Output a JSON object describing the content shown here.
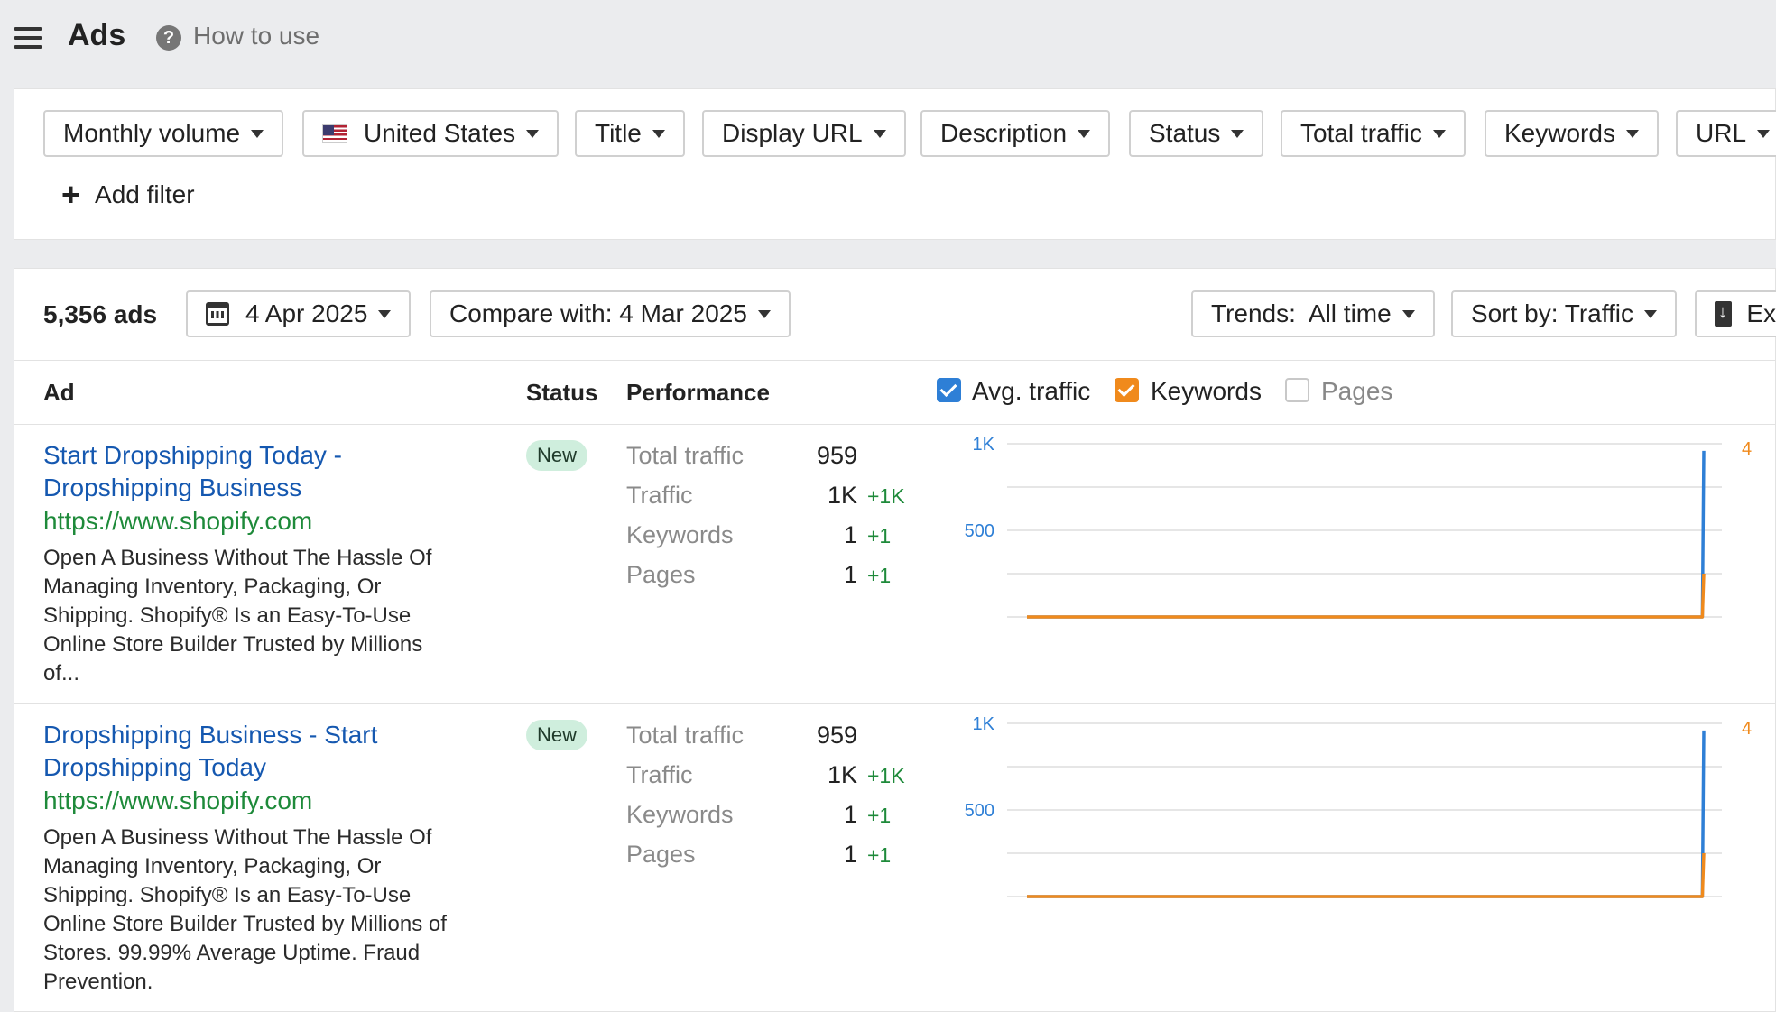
{
  "header": {
    "title": "Ads",
    "help_label": "How to use",
    "help_icon": "question-circle-icon",
    "menu_icon": "hamburger-menu-icon"
  },
  "filters": {
    "chips": [
      {
        "label": "Monthly volume"
      },
      {
        "label": "United States",
        "icon": "us-flag-icon"
      },
      {
        "label": "Title"
      },
      {
        "label": "Display URL"
      },
      {
        "label": "Description"
      },
      {
        "label": "Status"
      },
      {
        "label": "Total traffic"
      },
      {
        "label": "Keywords"
      },
      {
        "label": "URL"
      }
    ],
    "add_filter_label": "Add filter"
  },
  "results": {
    "count_label": "5,356 ads",
    "date_label": "4 Apr 2025",
    "compare_label": "Compare with: 4 Mar 2025",
    "trends_label": "Trends:  All time",
    "sort_label": "Sort by: Traffic",
    "export_label": "Ex"
  },
  "table": {
    "headers": {
      "ad": "Ad",
      "status": "Status",
      "performance": "Performance"
    },
    "toggles": [
      {
        "label": "Avg. traffic",
        "checked": true,
        "color": "#2e7fd6"
      },
      {
        "label": "Keywords",
        "checked": true,
        "color": "#f08a1c"
      },
      {
        "label": "Pages",
        "checked": false
      }
    ],
    "rows": [
      {
        "title_line1": "Start Dropshipping Today -",
        "title_line2": "Dropshipping Business",
        "url": "https://www.shopify.com",
        "desc_lines": [
          "Open A Business Without The Hassle Of",
          "Managing Inventory, Packaging, Or",
          "Shipping. Shopify® Is an Easy-To-Use",
          "Online Store Builder Trusted by Millions",
          "of..."
        ],
        "status": "New",
        "perf": {
          "total_traffic_label": "Total traffic",
          "total_traffic": "959",
          "traffic_label": "Traffic",
          "traffic": "1K",
          "traffic_delta": "+1K",
          "keywords_label": "Keywords",
          "keywords": "1",
          "keywords_delta": "+1",
          "pages_label": "Pages",
          "pages": "1",
          "pages_delta": "+1"
        }
      },
      {
        "title_line1": "Dropshipping Business - Start",
        "title_line2": "Dropshipping Today",
        "url": "https://www.shopify.com",
        "desc_lines": [
          "Open A Business Without The Hassle Of",
          "Managing Inventory, Packaging, Or",
          "Shipping. Shopify® Is an Easy-To-Use",
          "Online Store Builder Trusted by Millions of",
          "Stores. 99.99% Average Uptime. Fraud",
          "Prevention."
        ],
        "status": "New",
        "perf": {
          "total_traffic_label": "Total traffic",
          "total_traffic": "959",
          "traffic_label": "Traffic",
          "traffic": "1K",
          "traffic_delta": "+1K",
          "keywords_label": "Keywords",
          "keywords": "1",
          "keywords_delta": "+1",
          "pages_label": "Pages",
          "pages": "1",
          "pages_delta": "+1"
        }
      }
    ]
  },
  "chart_data": [
    {
      "type": "line",
      "left_axis": {
        "ticks": [
          "1K",
          "500"
        ],
        "color": "#2e7fd6",
        "range": [
          0,
          1000
        ]
      },
      "right_axis": {
        "ticks": [
          "4"
        ],
        "color": "#f08a1c",
        "range": [
          0,
          4
        ]
      },
      "series": [
        {
          "name": "Avg. traffic",
          "color": "#2e7fd6",
          "axis": "left",
          "values": [
            0,
            0,
            0,
            0,
            0,
            0,
            0,
            0,
            0,
            0,
            0,
            0,
            0,
            0,
            0,
            0,
            0,
            0,
            0,
            0,
            0,
            0,
            0,
            0,
            0,
            0,
            0,
            0,
            0,
            0,
            0,
            0,
            0,
            0,
            0,
            0,
            0,
            0,
            0,
            0,
            0,
            0,
            0,
            0,
            0,
            0,
            0,
            0,
            0,
            0,
            0,
            0,
            0,
            0,
            0,
            0,
            0,
            0,
            0,
            0,
            0,
            0,
            0,
            0,
            0,
            0,
            0,
            0,
            0,
            0,
            0,
            0,
            0,
            0,
            0,
            0,
            0,
            0,
            0,
            0,
            0,
            0,
            0,
            0,
            0,
            0,
            0,
            0,
            0,
            0,
            0,
            0,
            0,
            0,
            0,
            0,
            0,
            0,
            0,
            959
          ]
        },
        {
          "name": "Keywords",
          "color": "#f08a1c",
          "axis": "right",
          "values": [
            0,
            0,
            0,
            0,
            0,
            0,
            0,
            0,
            0,
            0,
            0,
            0,
            0,
            0,
            0,
            0,
            0,
            0,
            0,
            0,
            0,
            0,
            0,
            0,
            0,
            0,
            0,
            0,
            0,
            0,
            0,
            0,
            0,
            0,
            0,
            0,
            0,
            0,
            0,
            0,
            0,
            0,
            0,
            0,
            0,
            0,
            0,
            0,
            0,
            0,
            0,
            0,
            0,
            0,
            0,
            0,
            0,
            0,
            0,
            0,
            0,
            0,
            0,
            0,
            0,
            0,
            0,
            0,
            0,
            0,
            0,
            0,
            0,
            0,
            0,
            0,
            0,
            0,
            0,
            0,
            0,
            0,
            0,
            0,
            0,
            0,
            0,
            0,
            0,
            0,
            0,
            0,
            0,
            0,
            0,
            0,
            0,
            0,
            0,
            1
          ]
        }
      ]
    },
    {
      "type": "line",
      "left_axis": {
        "ticks": [
          "1K",
          "500"
        ],
        "color": "#2e7fd6",
        "range": [
          0,
          1000
        ]
      },
      "right_axis": {
        "ticks": [
          "4"
        ],
        "color": "#f08a1c",
        "range": [
          0,
          4
        ]
      },
      "series": [
        {
          "name": "Avg. traffic",
          "color": "#2e7fd6",
          "axis": "left",
          "values": [
            0,
            0,
            0,
            0,
            0,
            0,
            0,
            0,
            0,
            0,
            0,
            0,
            0,
            0,
            0,
            0,
            0,
            0,
            0,
            0,
            0,
            0,
            0,
            0,
            0,
            0,
            0,
            0,
            0,
            0,
            0,
            0,
            0,
            0,
            0,
            0,
            0,
            0,
            0,
            0,
            0,
            0,
            0,
            0,
            0,
            0,
            0,
            0,
            0,
            0,
            0,
            0,
            0,
            0,
            0,
            0,
            0,
            0,
            0,
            0,
            0,
            0,
            0,
            0,
            0,
            0,
            0,
            0,
            0,
            0,
            0,
            0,
            0,
            0,
            0,
            0,
            0,
            0,
            0,
            0,
            0,
            0,
            0,
            0,
            0,
            0,
            0,
            0,
            0,
            0,
            0,
            0,
            0,
            0,
            0,
            0,
            0,
            0,
            0,
            959
          ]
        },
        {
          "name": "Keywords",
          "color": "#f08a1c",
          "axis": "right",
          "values": [
            0,
            0,
            0,
            0,
            0,
            0,
            0,
            0,
            0,
            0,
            0,
            0,
            0,
            0,
            0,
            0,
            0,
            0,
            0,
            0,
            0,
            0,
            0,
            0,
            0,
            0,
            0,
            0,
            0,
            0,
            0,
            0,
            0,
            0,
            0,
            0,
            0,
            0,
            0,
            0,
            0,
            0,
            0,
            0,
            0,
            0,
            0,
            0,
            0,
            0,
            0,
            0,
            0,
            0,
            0,
            0,
            0,
            0,
            0,
            0,
            0,
            0,
            0,
            0,
            0,
            0,
            0,
            0,
            0,
            0,
            0,
            0,
            0,
            0,
            0,
            0,
            0,
            0,
            0,
            0,
            0,
            0,
            0,
            0,
            0,
            0,
            0,
            0,
            0,
            0,
            0,
            0,
            0,
            0,
            0,
            0,
            0,
            0,
            0,
            1
          ]
        }
      ]
    }
  ]
}
